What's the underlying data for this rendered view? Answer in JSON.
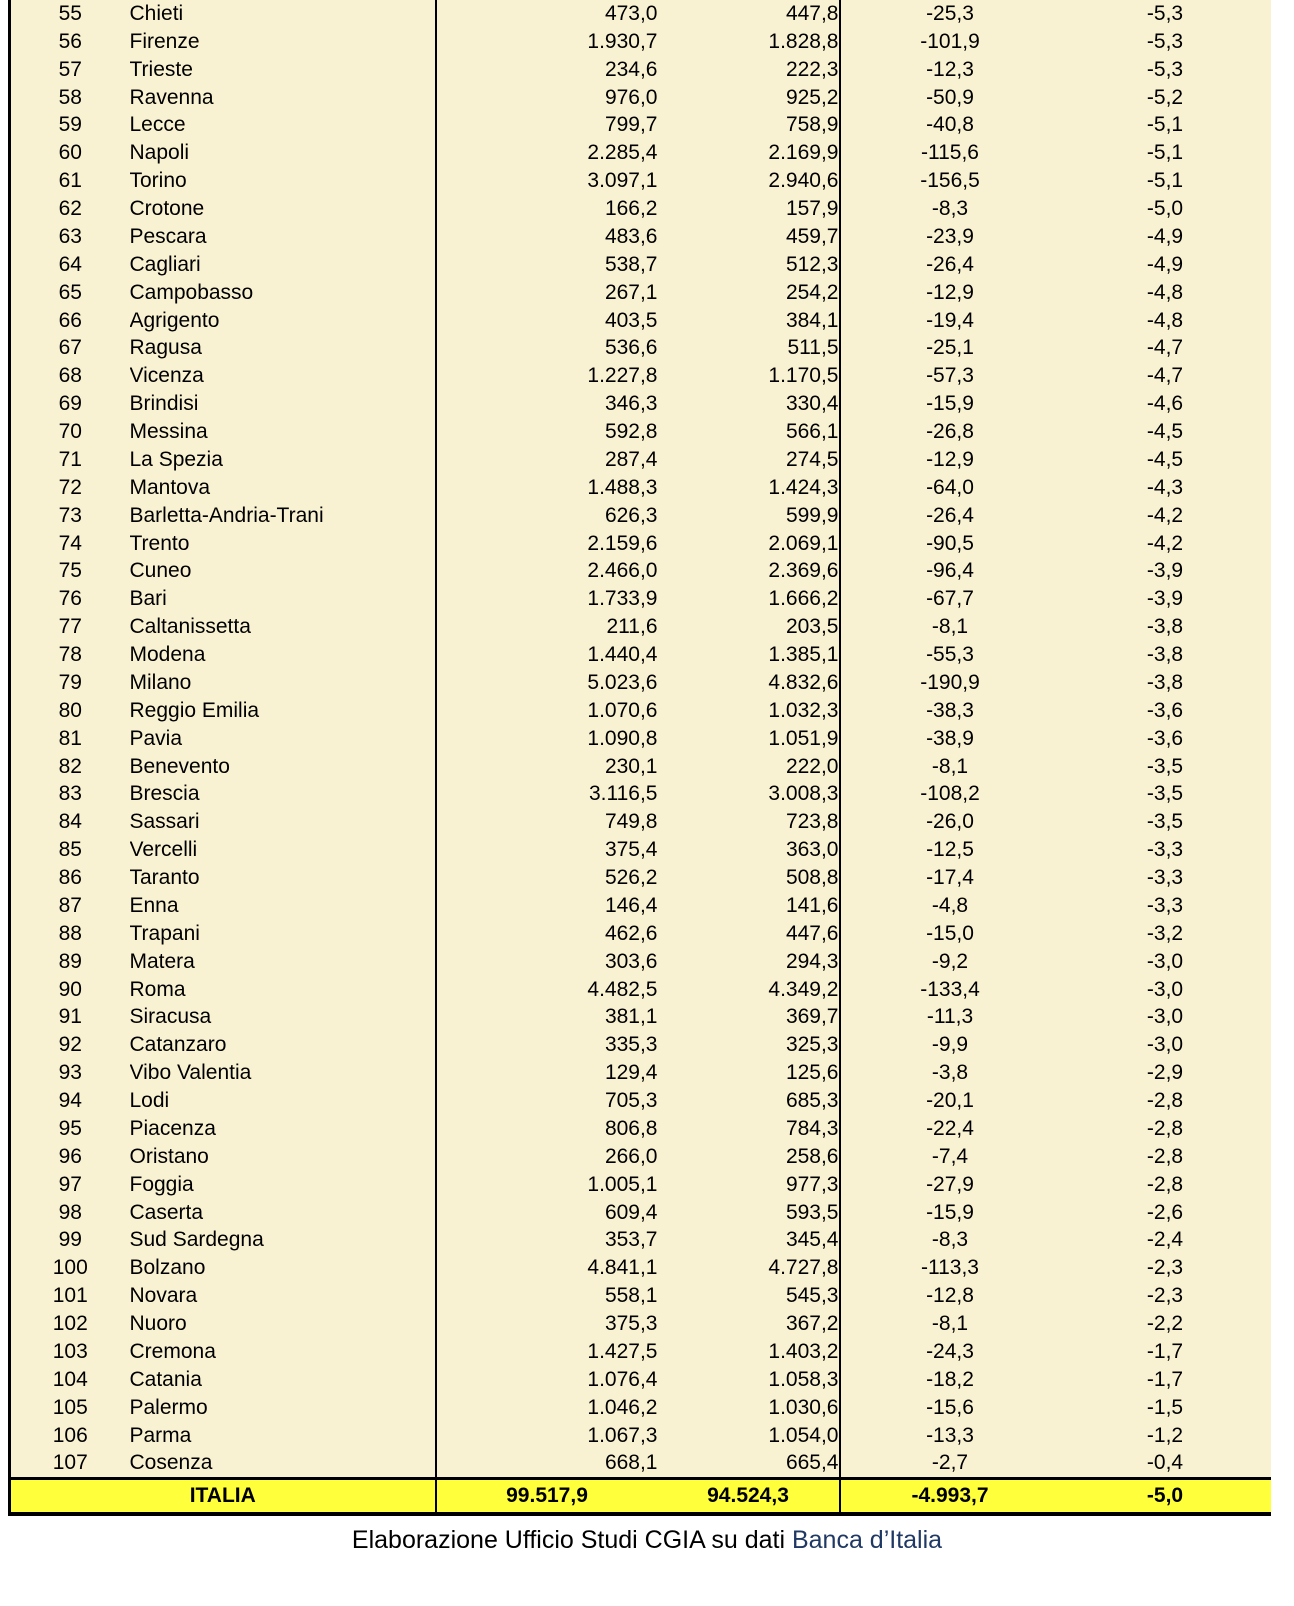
{
  "colors": {
    "table_bg": "#F9F2D2",
    "total_row_bg": "#FFFF3C",
    "source_text": "#1F3864",
    "border": "#000000"
  },
  "table": {
    "cell_names": [
      "col-rank",
      "col-province-name",
      "col-value-1",
      "col-value-2",
      "col-difference",
      "col-percent"
    ],
    "rows": [
      [
        "55",
        "Chieti",
        "473,0",
        "447,8",
        "-25,3",
        "-5,3"
      ],
      [
        "56",
        "Firenze",
        "1.930,7",
        "1.828,8",
        "-101,9",
        "-5,3"
      ],
      [
        "57",
        "Trieste",
        "234,6",
        "222,3",
        "-12,3",
        "-5,3"
      ],
      [
        "58",
        "Ravenna",
        "976,0",
        "925,2",
        "-50,9",
        "-5,2"
      ],
      [
        "59",
        "Lecce",
        "799,7",
        "758,9",
        "-40,8",
        "-5,1"
      ],
      [
        "60",
        "Napoli",
        "2.285,4",
        "2.169,9",
        "-115,6",
        "-5,1"
      ],
      [
        "61",
        "Torino",
        "3.097,1",
        "2.940,6",
        "-156,5",
        "-5,1"
      ],
      [
        "62",
        "Crotone",
        "166,2",
        "157,9",
        "-8,3",
        "-5,0"
      ],
      [
        "63",
        "Pescara",
        "483,6",
        "459,7",
        "-23,9",
        "-4,9"
      ],
      [
        "64",
        "Cagliari",
        "538,7",
        "512,3",
        "-26,4",
        "-4,9"
      ],
      [
        "65",
        "Campobasso",
        "267,1",
        "254,2",
        "-12,9",
        "-4,8"
      ],
      [
        "66",
        "Agrigento",
        "403,5",
        "384,1",
        "-19,4",
        "-4,8"
      ],
      [
        "67",
        "Ragusa",
        "536,6",
        "511,5",
        "-25,1",
        "-4,7"
      ],
      [
        "68",
        "Vicenza",
        "1.227,8",
        "1.170,5",
        "-57,3",
        "-4,7"
      ],
      [
        "69",
        "Brindisi",
        "346,3",
        "330,4",
        "-15,9",
        "-4,6"
      ],
      [
        "70",
        "Messina",
        "592,8",
        "566,1",
        "-26,8",
        "-4,5"
      ],
      [
        "71",
        "La Spezia",
        "287,4",
        "274,5",
        "-12,9",
        "-4,5"
      ],
      [
        "72",
        "Mantova",
        "1.488,3",
        "1.424,3",
        "-64,0",
        "-4,3"
      ],
      [
        "73",
        "Barletta-Andria-Trani",
        "626,3",
        "599,9",
        "-26,4",
        "-4,2"
      ],
      [
        "74",
        "Trento",
        "2.159,6",
        "2.069,1",
        "-90,5",
        "-4,2"
      ],
      [
        "75",
        "Cuneo",
        "2.466,0",
        "2.369,6",
        "-96,4",
        "-3,9"
      ],
      [
        "76",
        "Bari",
        "1.733,9",
        "1.666,2",
        "-67,7",
        "-3,9"
      ],
      [
        "77",
        "Caltanissetta",
        "211,6",
        "203,5",
        "-8,1",
        "-3,8"
      ],
      [
        "78",
        "Modena",
        "1.440,4",
        "1.385,1",
        "-55,3",
        "-3,8"
      ],
      [
        "79",
        "Milano",
        "5.023,6",
        "4.832,6",
        "-190,9",
        "-3,8"
      ],
      [
        "80",
        "Reggio Emilia",
        "1.070,6",
        "1.032,3",
        "-38,3",
        "-3,6"
      ],
      [
        "81",
        "Pavia",
        "1.090,8",
        "1.051,9",
        "-38,9",
        "-3,6"
      ],
      [
        "82",
        "Benevento",
        "230,1",
        "222,0",
        "-8,1",
        "-3,5"
      ],
      [
        "83",
        "Brescia",
        "3.116,5",
        "3.008,3",
        "-108,2",
        "-3,5"
      ],
      [
        "84",
        "Sassari",
        "749,8",
        "723,8",
        "-26,0",
        "-3,5"
      ],
      [
        "85",
        "Vercelli",
        "375,4",
        "363,0",
        "-12,5",
        "-3,3"
      ],
      [
        "86",
        "Taranto",
        "526,2",
        "508,8",
        "-17,4",
        "-3,3"
      ],
      [
        "87",
        "Enna",
        "146,4",
        "141,6",
        "-4,8",
        "-3,3"
      ],
      [
        "88",
        "Trapani",
        "462,6",
        "447,6",
        "-15,0",
        "-3,2"
      ],
      [
        "89",
        "Matera",
        "303,6",
        "294,3",
        "-9,2",
        "-3,0"
      ],
      [
        "90",
        "Roma",
        "4.482,5",
        "4.349,2",
        "-133,4",
        "-3,0"
      ],
      [
        "91",
        "Siracusa",
        "381,1",
        "369,7",
        "-11,3",
        "-3,0"
      ],
      [
        "92",
        "Catanzaro",
        "335,3",
        "325,3",
        "-9,9",
        "-3,0"
      ],
      [
        "93",
        "Vibo Valentia",
        "129,4",
        "125,6",
        "-3,8",
        "-2,9"
      ],
      [
        "94",
        "Lodi",
        "705,3",
        "685,3",
        "-20,1",
        "-2,8"
      ],
      [
        "95",
        "Piacenza",
        "806,8",
        "784,3",
        "-22,4",
        "-2,8"
      ],
      [
        "96",
        "Oristano",
        "266,0",
        "258,6",
        "-7,4",
        "-2,8"
      ],
      [
        "97",
        "Foggia",
        "1.005,1",
        "977,3",
        "-27,9",
        "-2,8"
      ],
      [
        "98",
        "Caserta",
        "609,4",
        "593,5",
        "-15,9",
        "-2,6"
      ],
      [
        "99",
        "Sud Sardegna",
        "353,7",
        "345,4",
        "-8,3",
        "-2,4"
      ],
      [
        "100",
        "Bolzano",
        "4.841,1",
        "4.727,8",
        "-113,3",
        "-2,3"
      ],
      [
        "101",
        "Novara",
        "558,1",
        "545,3",
        "-12,8",
        "-2,3"
      ],
      [
        "102",
        "Nuoro",
        "375,3",
        "367,2",
        "-8,1",
        "-2,2"
      ],
      [
        "103",
        "Cremona",
        "1.427,5",
        "1.403,2",
        "-24,3",
        "-1,7"
      ],
      [
        "104",
        "Catania",
        "1.076,4",
        "1.058,3",
        "-18,2",
        "-1,7"
      ],
      [
        "105",
        "Palermo",
        "1.046,2",
        "1.030,6",
        "-15,6",
        "-1,5"
      ],
      [
        "106",
        "Parma",
        "1.067,3",
        "1.054,0",
        "-13,3",
        "-1,2"
      ],
      [
        "107",
        "Cosenza",
        "668,1",
        "665,4",
        "-2,7",
        "-0,4"
      ]
    ],
    "total": {
      "label": "ITALIA",
      "value_1": "99.517,9",
      "value_2": "94.524,3",
      "difference": "-4.993,7",
      "percent": "-5,0"
    }
  },
  "caption": {
    "text": "Elaborazione Ufficio Studi CGIA su dati ",
    "source": "Banca d’Italia"
  }
}
